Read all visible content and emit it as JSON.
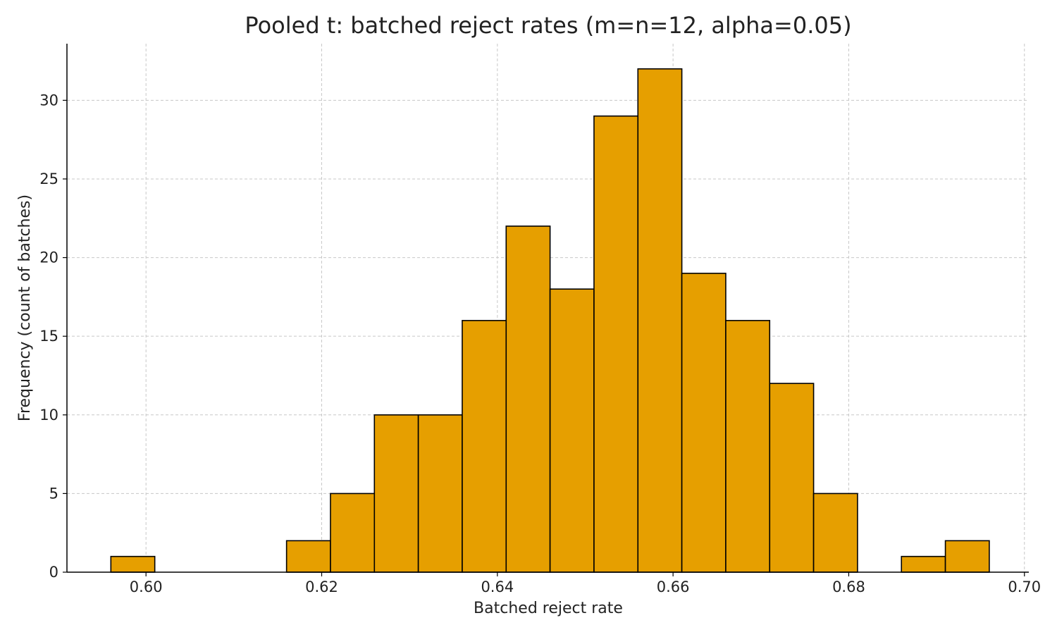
{
  "chart_data": {
    "type": "bar",
    "title": "Pooled t: batched reject rates (m=n=12, alpha=0.05)",
    "xlabel": "Batched reject rate",
    "ylabel": "Frequency (count of batches)",
    "xlim": [
      0.591,
      0.7005
    ],
    "ylim": [
      0,
      33.6
    ],
    "xticks": [
      0.6,
      0.62,
      0.64,
      0.66,
      0.68,
      0.7
    ],
    "xtick_labels": [
      "0.60",
      "0.62",
      "0.64",
      "0.66",
      "0.68",
      "0.70"
    ],
    "yticks": [
      0,
      5,
      10,
      15,
      20,
      25,
      30
    ],
    "ytick_labels": [
      "0",
      "5",
      "10",
      "15",
      "20",
      "25",
      "30"
    ],
    "bin_width": 0.005,
    "bin_starts": [
      0.596,
      0.601,
      0.606,
      0.611,
      0.616,
      0.621,
      0.626,
      0.631,
      0.636,
      0.641,
      0.646,
      0.651,
      0.656,
      0.661,
      0.666,
      0.671,
      0.676,
      0.681,
      0.686,
      0.691
    ],
    "values": [
      1,
      0,
      0,
      0,
      2,
      5,
      10,
      10,
      16,
      22,
      18,
      29,
      32,
      19,
      16,
      12,
      5,
      0,
      1,
      2
    ],
    "bar_color": "#E69F00",
    "edge_color": "#000000",
    "grid": true,
    "legend": null
  }
}
